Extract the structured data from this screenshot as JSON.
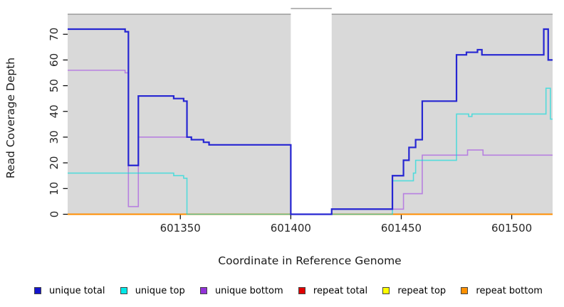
{
  "chart_data": {
    "type": "line",
    "subtype": "step-after",
    "title": "",
    "xlabel": "Coordinate in Reference Genome",
    "ylabel": "Read Coverage Depth",
    "xlim": [
      601299,
      601518.5
    ],
    "ylim": [
      0,
      77.8
    ],
    "xticks": [
      601350,
      601400,
      601450,
      601500
    ],
    "yticks": [
      0,
      10,
      20,
      30,
      40,
      50,
      60,
      70
    ],
    "grid": false,
    "plot_bg": "#d9d9d9",
    "plot_border_top": "#8c8c8c",
    "gap_region": {
      "from": 601400,
      "to": 601418.5,
      "fill": "#ffffff"
    },
    "series": [
      {
        "name": "repeat total",
        "color": "#cc0000",
        "width": 1.6,
        "opacity": 1,
        "steps": [
          [
            601299,
            0
          ],
          [
            601518.5,
            0
          ]
        ]
      },
      {
        "name": "repeat top",
        "color": "#ffff00",
        "width": 1.6,
        "opacity": 1,
        "steps": [
          [
            601299,
            0
          ],
          [
            601518.5,
            0
          ]
        ]
      },
      {
        "name": "repeat bottom",
        "color": "#ff8c00",
        "width": 2,
        "opacity": 1,
        "steps": [
          [
            601299,
            0
          ],
          [
            601518.5,
            0
          ]
        ]
      },
      {
        "name": "unique bottom",
        "color": "#b57be0",
        "width": 1.6,
        "opacity": 0.95,
        "steps": [
          [
            601299,
            56
          ],
          [
            601325,
            55
          ],
          [
            601326.5,
            3
          ],
          [
            601331,
            30
          ],
          [
            601355,
            29
          ],
          [
            601360.5,
            28
          ],
          [
            601363,
            27
          ],
          [
            601400,
            0
          ],
          [
            601418.5,
            2
          ],
          [
            601451,
            8
          ],
          [
            601459.5,
            23
          ],
          [
            601480,
            25
          ],
          [
            601487,
            23
          ],
          [
            601518.5,
            23
          ]
        ]
      },
      {
        "name": "unique top",
        "color": "#00dcdc",
        "width": 1.6,
        "opacity": 0.62,
        "steps": [
          [
            601299,
            16
          ],
          [
            601347,
            15
          ],
          [
            601351.5,
            14
          ],
          [
            601353,
            0
          ],
          [
            601446,
            13
          ],
          [
            601455.5,
            16
          ],
          [
            601456.5,
            21
          ],
          [
            601475,
            39
          ],
          [
            601480.5,
            38
          ],
          [
            601482,
            39
          ],
          [
            601515.5,
            49
          ],
          [
            601517.5,
            37
          ],
          [
            601518.5,
            37
          ]
        ]
      },
      {
        "name": "unique total",
        "color": "#2626d2",
        "width": 2.2,
        "opacity": 1,
        "steps": [
          [
            601299,
            72
          ],
          [
            601325,
            71
          ],
          [
            601326.5,
            19
          ],
          [
            601331,
            46
          ],
          [
            601347,
            45
          ],
          [
            601351.5,
            44
          ],
          [
            601353,
            30
          ],
          [
            601355,
            29
          ],
          [
            601360.5,
            28
          ],
          [
            601363,
            27
          ],
          [
            601400,
            0
          ],
          [
            601418.5,
            2
          ],
          [
            601446,
            15
          ],
          [
            601451,
            21
          ],
          [
            601453.5,
            26
          ],
          [
            601456.5,
            29
          ],
          [
            601459.5,
            44
          ],
          [
            601475,
            62
          ],
          [
            601479.5,
            63
          ],
          [
            601484.5,
            64
          ],
          [
            601486.5,
            62
          ],
          [
            601514.5,
            72
          ],
          [
            601516.5,
            60
          ],
          [
            601518.5,
            60
          ]
        ]
      }
    ],
    "legend": [
      {
        "label": "unique total",
        "color": "#1414cc"
      },
      {
        "label": "unique top",
        "color": "#00e8e8"
      },
      {
        "label": "unique bottom",
        "color": "#9232d8"
      },
      {
        "label": "repeat total",
        "color": "#e00000"
      },
      {
        "label": "repeat top",
        "color": "#ffff00"
      },
      {
        "label": "repeat bottom",
        "color": "#ff9100"
      }
    ],
    "legend_position": "bottom"
  }
}
